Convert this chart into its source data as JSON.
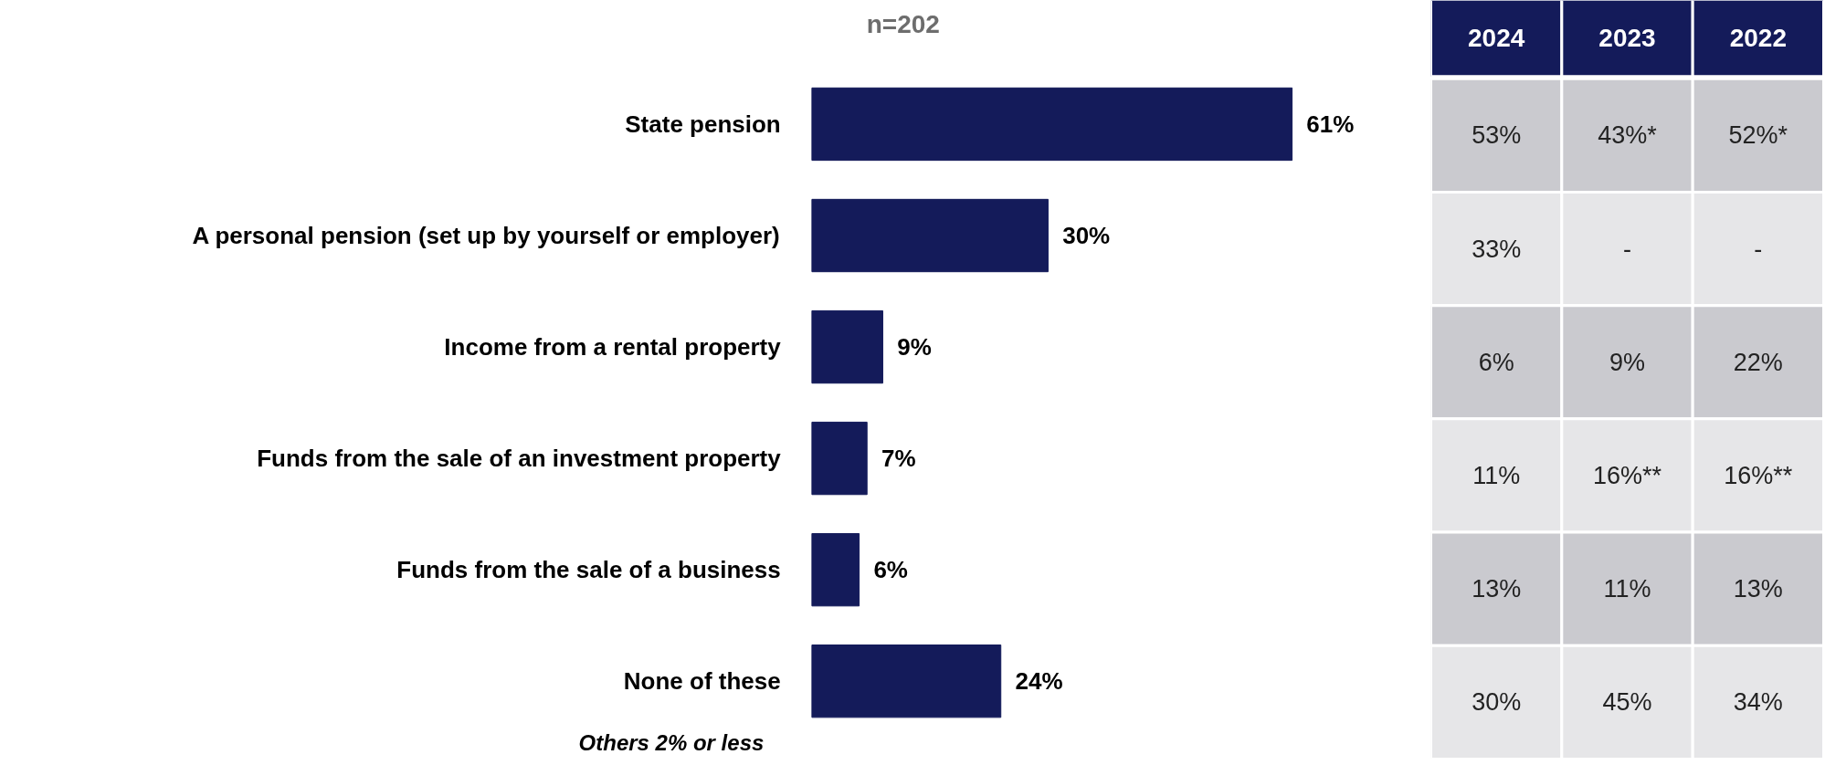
{
  "chart_data": [
    {
      "type": "bar",
      "orientation": "horizontal",
      "subtitle": "n=202",
      "categories": [
        "State pension",
        "A personal pension (set up by yourself or employer)",
        "Income from a rental property",
        "Funds from the sale of an investment property",
        "Funds from the sale of a business",
        "None of these"
      ],
      "values": [
        61,
        30,
        9,
        7,
        6,
        24
      ],
      "value_labels": [
        "61%",
        "30%",
        "9%",
        "7%",
        "6%",
        "24%"
      ],
      "color": "#141b5a",
      "annotations": [
        "Others 2% or less"
      ]
    },
    {
      "type": "other",
      "categories": [
        "2024",
        "2023",
        "2022"
      ],
      "cell_labels": [
        [
          "53%",
          "43%*",
          "52%*"
        ],
        [
          "33%",
          "-",
          "-"
        ],
        [
          "6%",
          "9%",
          "22%"
        ],
        [
          "11%",
          "16%**",
          "16%**"
        ],
        [
          "13%",
          "11%",
          "13%"
        ],
        [
          "30%",
          "45%",
          "34%"
        ]
      ]
    }
  ]
}
